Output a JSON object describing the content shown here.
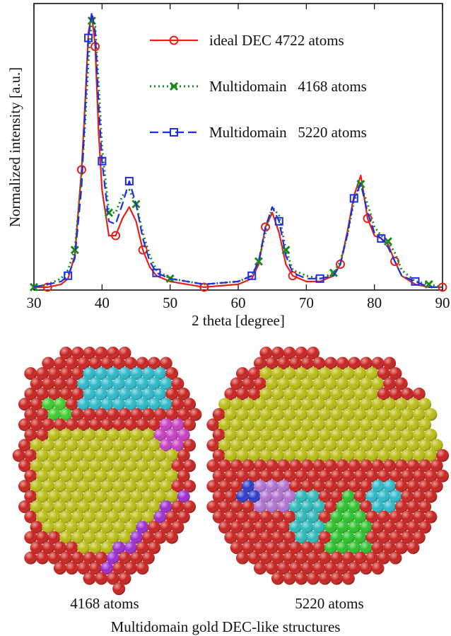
{
  "chart_data": {
    "type": "line",
    "ylabel": "Normalized intensity [a.u.]",
    "xlabel": "2 theta [degree]",
    "xlim": [
      30,
      90
    ],
    "xticks": [
      30,
      40,
      50,
      60,
      70,
      80,
      90
    ],
    "ylim": [
      0,
      1
    ],
    "x": [
      30,
      32,
      34,
      35,
      36,
      37,
      37.5,
      38,
      38.5,
      39,
      39.5,
      40,
      41,
      42,
      43,
      44,
      45,
      46,
      47,
      48,
      50,
      55,
      60,
      62,
      63,
      64,
      65,
      66,
      67,
      68,
      70,
      72,
      74,
      75,
      76,
      77,
      78,
      79,
      80,
      81,
      82,
      83,
      84,
      86,
      88,
      90
    ],
    "legend": "upper right",
    "series": [
      {
        "name": "ideal DEC 4722 atoms",
        "color": "#e8201c",
        "style": "solid",
        "marker": "circle",
        "values": [
          0.01,
          0.01,
          0.02,
          0.04,
          0.12,
          0.42,
          0.65,
          0.9,
          0.96,
          0.85,
          0.55,
          0.35,
          0.19,
          0.19,
          0.25,
          0.29,
          0.24,
          0.14,
          0.08,
          0.05,
          0.03,
          0.01,
          0.02,
          0.04,
          0.09,
          0.22,
          0.27,
          0.2,
          0.09,
          0.05,
          0.03,
          0.03,
          0.05,
          0.09,
          0.2,
          0.33,
          0.4,
          0.25,
          0.19,
          0.18,
          0.16,
          0.1,
          0.05,
          0.02,
          0.01,
          0.01
        ]
      },
      {
        "name": "Multidomain   4168 atoms",
        "color": "#1a8a1a",
        "style": "dotted",
        "marker": "x",
        "values": [
          0.01,
          0.02,
          0.04,
          0.07,
          0.14,
          0.4,
          0.58,
          0.8,
          0.94,
          0.92,
          0.72,
          0.5,
          0.27,
          0.27,
          0.33,
          0.35,
          0.3,
          0.2,
          0.12,
          0.07,
          0.04,
          0.02,
          0.03,
          0.05,
          0.1,
          0.2,
          0.29,
          0.26,
          0.14,
          0.07,
          0.05,
          0.04,
          0.06,
          0.1,
          0.19,
          0.31,
          0.37,
          0.3,
          0.22,
          0.19,
          0.17,
          0.13,
          0.07,
          0.03,
          0.02,
          0.01
        ]
      },
      {
        "name": "Multidomain   5220 atoms",
        "color": "#1c2ee0",
        "style": "dashed",
        "marker": "square",
        "values": [
          0.01,
          0.02,
          0.03,
          0.05,
          0.11,
          0.36,
          0.62,
          0.88,
          0.97,
          0.9,
          0.65,
          0.45,
          0.24,
          0.23,
          0.3,
          0.38,
          0.3,
          0.18,
          0.1,
          0.06,
          0.04,
          0.02,
          0.03,
          0.05,
          0.1,
          0.22,
          0.29,
          0.24,
          0.12,
          0.06,
          0.04,
          0.04,
          0.05,
          0.09,
          0.19,
          0.32,
          0.37,
          0.27,
          0.2,
          0.18,
          0.15,
          0.1,
          0.05,
          0.03,
          0.01,
          0.01
        ]
      }
    ]
  },
  "figure": {
    "panels": [
      {
        "caption": "4168 atoms"
      },
      {
        "caption": "5220 atoms"
      }
    ],
    "caption": "Multidomain gold DEC-like structures"
  }
}
